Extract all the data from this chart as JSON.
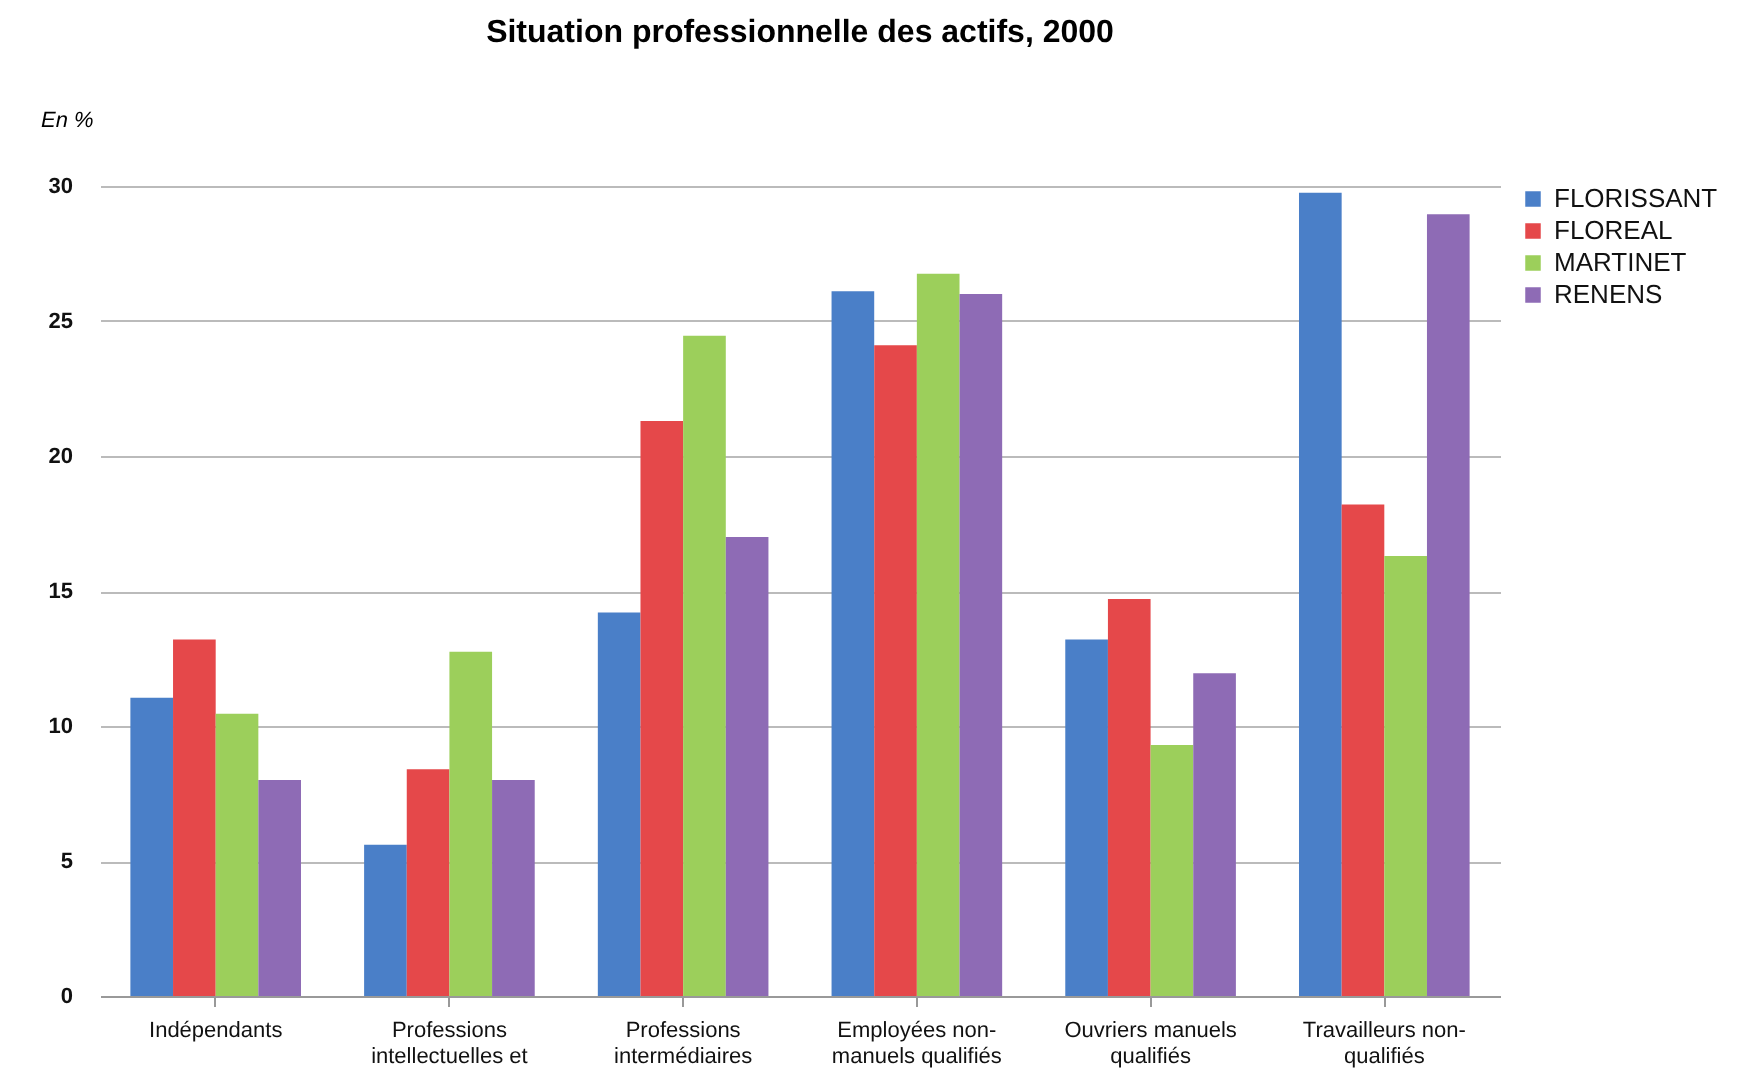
{
  "chart_data": {
    "type": "bar",
    "title": "Situation professionnelle des actifs, 2000",
    "ylabel": "En %",
    "categories": [
      "Indépendants",
      "Professions intellectuelles et",
      "Professions intermédiaires",
      "Employées non-manuels qualifiés",
      "Ouvriers manuels qualifiés",
      "Travailleurs non-qualifiés"
    ],
    "series": [
      {
        "name": "FLORISSANT",
        "color": "#4a7fc8",
        "values": [
          11.05,
          5.6,
          14.2,
          26.1,
          13.2,
          29.75
        ]
      },
      {
        "name": "FLOREAL",
        "color": "#e5484a",
        "values": [
          13.2,
          8.4,
          21.3,
          24.1,
          14.7,
          18.2
        ]
      },
      {
        "name": "MARTINET",
        "color": "#9ccf5b",
        "values": [
          10.45,
          12.75,
          24.45,
          26.75,
          9.3,
          16.3
        ]
      },
      {
        "name": "RENENS",
        "color": "#8e6bb5",
        "values": [
          8,
          8,
          17,
          26,
          11.95,
          28.95
        ]
      }
    ],
    "ylim": [
      0,
      30
    ],
    "yticks": [
      0,
      5,
      10,
      15,
      20,
      25,
      30
    ],
    "grid": "y",
    "legend": "right"
  }
}
